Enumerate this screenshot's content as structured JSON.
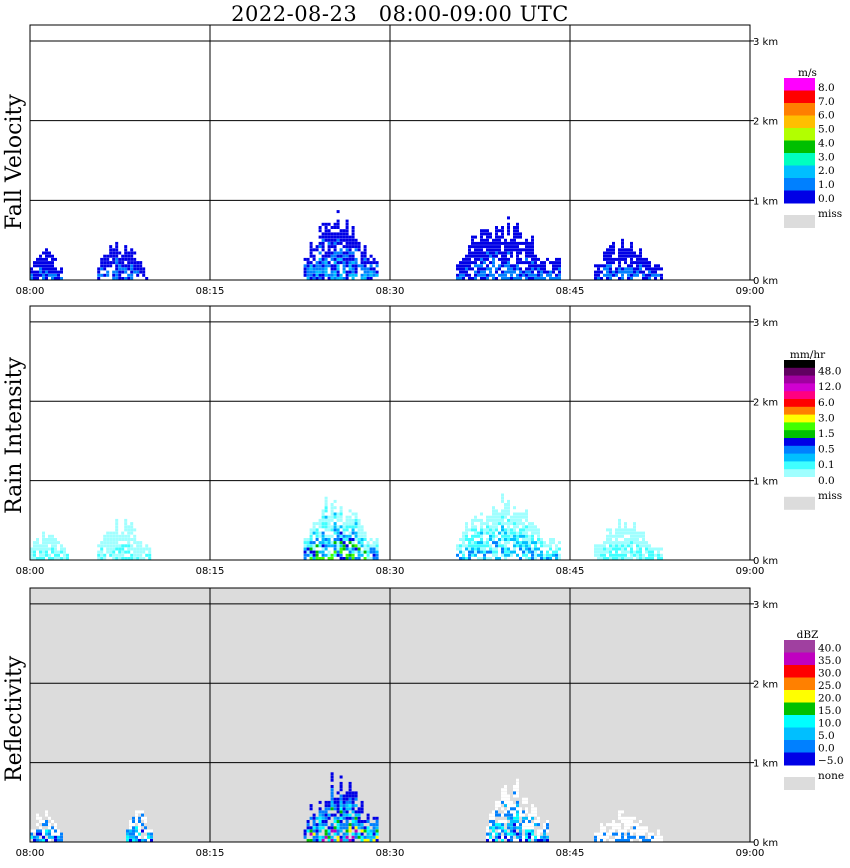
{
  "title": "2022-08-23   08:00-09:00 UTC",
  "chart_data": [
    {
      "type": "heatmap",
      "title": "Fall Velocity",
      "x_ticks": [
        "08:00",
        "08:15",
        "08:30",
        "08:45",
        "09:00"
      ],
      "y_ticks": [
        "0 km",
        "1 km",
        "2 km",
        "3 km"
      ],
      "ylim_km": [
        0,
        3.2
      ],
      "colorbar": {
        "unit": "m/s",
        "labels": [
          "8.0",
          "7.0",
          "6.0",
          "5.0",
          "4.0",
          "3.0",
          "2.0",
          "1.0",
          "0.0"
        ],
        "colors": [
          "#ff00ff",
          "#ff0000",
          "#ff7f00",
          "#ffbf00",
          "#b2ff00",
          "#00bf00",
          "#00ffbf",
          "#00bfff",
          "#0080ff",
          "#0000e6"
        ],
        "missing_label": "miss",
        "missing_color": "#dcdcdc"
      },
      "background": "#ffffff",
      "echoes": [
        {
          "t0": 0.0,
          "t1": 2.6,
          "h": 0.35,
          "level": 1
        },
        {
          "t0": 5.6,
          "t1": 9.8,
          "h": 0.45,
          "level": 1
        },
        {
          "t0": 22.8,
          "t1": 29.0,
          "h": 0.7,
          "level": 2
        },
        {
          "t0": 35.5,
          "t1": 44.0,
          "h": 0.65,
          "level": 1
        },
        {
          "t0": 47.0,
          "t1": 52.5,
          "h": 0.45,
          "level": 1
        }
      ]
    },
    {
      "type": "heatmap",
      "title": "Rain Intensity",
      "x_ticks": [
        "08:00",
        "08:15",
        "08:30",
        "08:45",
        "09:00"
      ],
      "y_ticks": [
        "0 km",
        "1 km",
        "2 km",
        "3 km"
      ],
      "ylim_km": [
        0,
        3.2
      ],
      "colorbar": {
        "unit": "mm/hr",
        "labels": [
          "48.0",
          "12.0",
          "6.0",
          "3.0",
          "1.5",
          "0.5",
          "0.1",
          "0.0"
        ],
        "colors": [
          "#000000",
          "#600060",
          "#a000a0",
          "#d000d0",
          "#ff0080",
          "#ff0000",
          "#ff8000",
          "#ffff00",
          "#40ff00",
          "#00c000",
          "#0000e6",
          "#0080ff",
          "#00bfff",
          "#40ffff",
          "#a0ffff",
          "#ffffff"
        ],
        "missing_label": "miss",
        "missing_color": "#dcdcdc"
      },
      "background": "#ffffff",
      "echoes": [
        {
          "t0": 0.0,
          "t1": 3.0,
          "h": 0.35,
          "level": 1
        },
        {
          "t0": 5.6,
          "t1": 10.0,
          "h": 0.45,
          "level": 1
        },
        {
          "t0": 22.8,
          "t1": 29.0,
          "h": 0.7,
          "level": 3
        },
        {
          "t0": 35.5,
          "t1": 44.0,
          "h": 0.65,
          "level": 2
        },
        {
          "t0": 47.0,
          "t1": 52.5,
          "h": 0.45,
          "level": 1
        }
      ]
    },
    {
      "type": "heatmap",
      "title": "Reflectivity",
      "x_ticks": [
        "08:00",
        "08:15",
        "08:30",
        "08:45",
        "09:00"
      ],
      "y_ticks": [
        "0 km",
        "1 km",
        "2 km",
        "3 km"
      ],
      "ylim_km": [
        0,
        3.2
      ],
      "colorbar": {
        "unit": "dBZ",
        "labels": [
          "40.0",
          "35.0",
          "30.0",
          "25.0",
          "20.0",
          "15.0",
          "10.0",
          "5.0",
          "0.0",
          "−5.0"
        ],
        "colors": [
          "#a040a0",
          "#c000c0",
          "#ff0000",
          "#ff8000",
          "#ffff00",
          "#00c000",
          "#00ffff",
          "#00bfff",
          "#0080ff",
          "#0000e6"
        ],
        "missing_label": "none",
        "missing_color": "#dcdcdc"
      },
      "background": "#dcdcdc",
      "echoes": [
        {
          "t0": 0.0,
          "t1": 2.6,
          "h": 0.35,
          "level": 2
        },
        {
          "t0": 8.0,
          "t1": 10.0,
          "h": 0.45,
          "level": 2
        },
        {
          "t0": 22.8,
          "t1": 29.0,
          "h": 0.7,
          "level": 3
        },
        {
          "t0": 38.0,
          "t1": 43.0,
          "h": 0.65,
          "level": 2
        },
        {
          "t0": 47.0,
          "t1": 52.5,
          "h": 0.3,
          "level": 1
        }
      ]
    }
  ]
}
